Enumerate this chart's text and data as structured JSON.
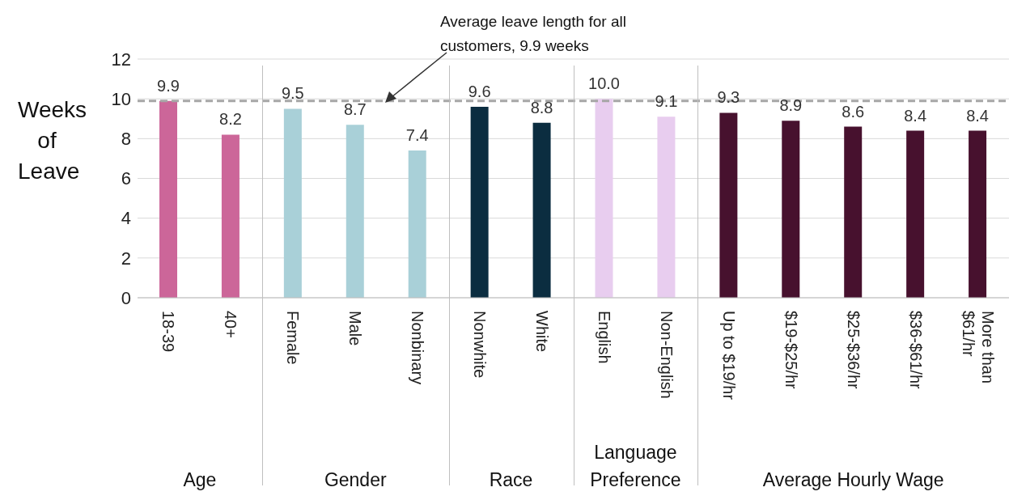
{
  "chart_data": {
    "type": "bar",
    "categories": [
      "18-39",
      "40+",
      "Female",
      "Male",
      "Nonbinary",
      "Nonwhite",
      "White",
      "English",
      "Non-English",
      "Up to $19/hr",
      "$19-$25/hr",
      "$25-$36/hr",
      "$36-$61/hr",
      "More than $61/hr"
    ],
    "values": [
      9.9,
      8.2,
      9.5,
      8.7,
      7.4,
      9.6,
      8.8,
      10.0,
      9.1,
      9.3,
      8.9,
      8.6,
      8.4,
      8.4
    ],
    "value_labels": [
      "9.9",
      "8.2",
      "9.5",
      "8.7",
      "7.4",
      "9.6",
      "8.8",
      "10.0",
      "9.1",
      "9.3",
      "8.9",
      "8.6",
      "8.4",
      "8.4"
    ],
    "colors": [
      "#cc6699",
      "#cc6699",
      "#a9d0d8",
      "#a9d0d8",
      "#a9d0d8",
      "#0b2d40",
      "#0b2d40",
      "#e8cdef",
      "#e8cdef",
      "#47112e",
      "#47112e",
      "#47112e",
      "#47112e",
      "#47112e"
    ],
    "ylabel": "Weeks of Leave",
    "ylim": [
      0,
      12
    ],
    "yticks": [
      0,
      2,
      4,
      6,
      8,
      10,
      12
    ],
    "grid": "y",
    "ref_lines": [
      {
        "axis": "y",
        "value": 9.9,
        "label": "Average leave length for all customers, 9.9 weeks",
        "color": "#a6a6a6",
        "line_style": "dashed"
      }
    ],
    "annotations": [
      "Age",
      "Gender",
      "Race",
      "Language Preference",
      "Average Hourly Wage"
    ]
  }
}
